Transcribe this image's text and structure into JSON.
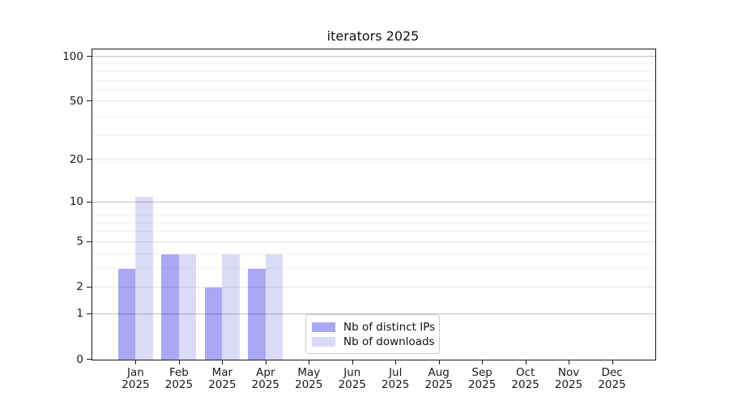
{
  "chart_data": {
    "type": "bar",
    "title": "iterators 2025",
    "categories": [
      "Jan",
      "Feb",
      "Mar",
      "Apr",
      "May",
      "Jun",
      "Jul",
      "Aug",
      "Sep",
      "Oct",
      "Nov",
      "Dec"
    ],
    "category_year": "2025",
    "series": [
      {
        "name": "Nb of distinct IPs",
        "color": "#a8a8f4",
        "values": [
          3,
          4,
          2,
          3,
          0,
          0,
          0,
          0,
          0,
          0,
          0,
          0
        ]
      },
      {
        "name": "Nb of downloads",
        "color": "#dbdbf8",
        "values": [
          11,
          4,
          4,
          4,
          0,
          0,
          0,
          0,
          0,
          0,
          0,
          0
        ]
      }
    ],
    "xlabel": "",
    "ylabel": "",
    "yscale": "log1p",
    "yticks": [
      0,
      1,
      2,
      5,
      10,
      20,
      50,
      100
    ],
    "ytick_emphasis": [
      1,
      10,
      100
    ],
    "ylim": [
      0,
      112
    ],
    "grid": true,
    "legend_position": "lower-center"
  },
  "colors": {
    "grid_major": "rgba(0,0,0,0.25)",
    "grid_mid": "rgba(0,0,0,0.10)",
    "grid_minor": "rgba(0,0,0,0.05)",
    "spine": "#1a1a1a",
    "text": "#1a1a1a"
  }
}
